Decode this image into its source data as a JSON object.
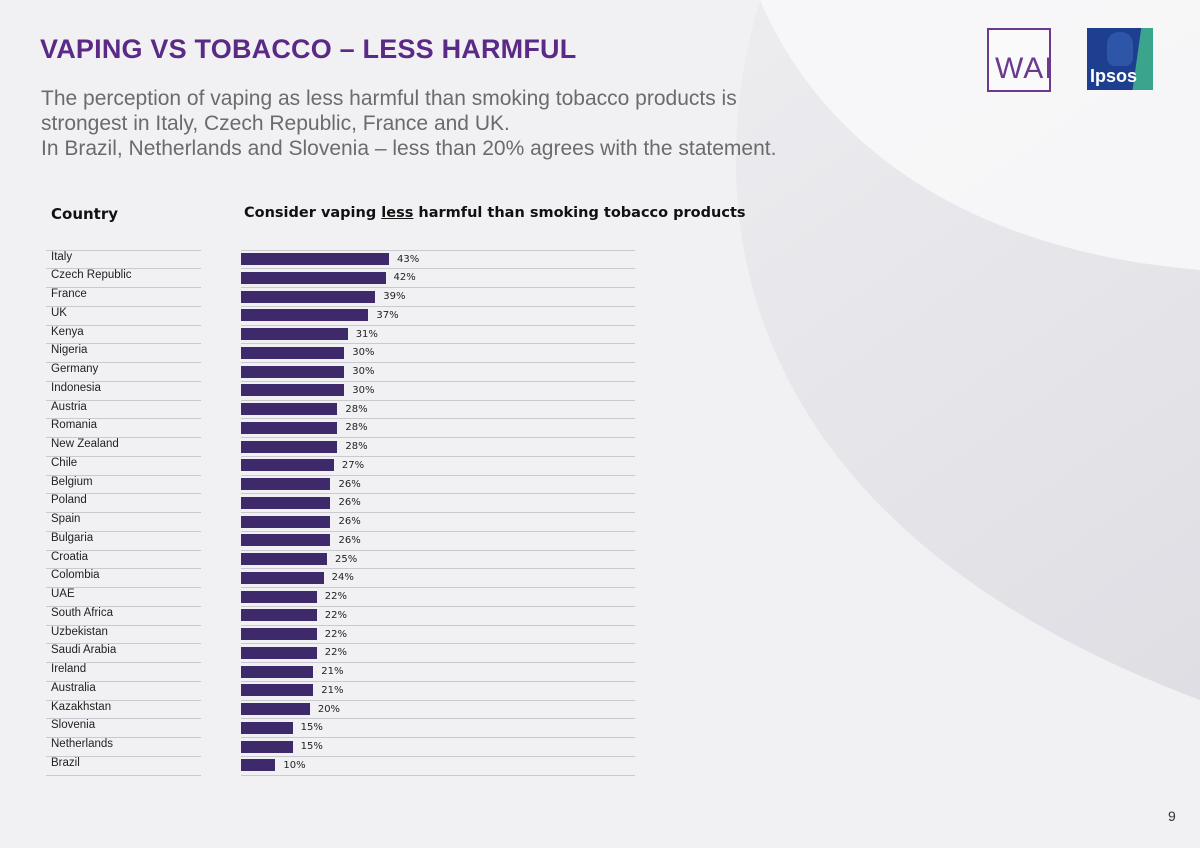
{
  "title": "VAPING VS TOBACCO – LESS HARMFUL",
  "subtitle_lines": [
    "The perception of vaping as less harmful than smoking tobacco products is",
    "strongest in Italy, Czech Republic, France and UK.",
    "In Brazil, Netherlands and Slovenia – less than 20% agrees with the statement."
  ],
  "logos": {
    "wai": "WAI",
    "ipsos": "Ipsos"
  },
  "headers": {
    "country": "Country",
    "measure_before": "Consider vaping ",
    "measure_underlined": "less",
    "measure_after": " harmful than smoking tobacco products"
  },
  "page_number": "9",
  "colors": {
    "title": "#5b2a86",
    "bar": "#3e2a6a",
    "subtitle": "#6b6b6b"
  },
  "chart_data": {
    "type": "bar",
    "orientation": "horizontal",
    "value_unit": "%",
    "categories": [
      "Italy",
      "Czech Republic",
      "France",
      "UK",
      "Kenya",
      "Nigeria",
      "Germany",
      "Indonesia",
      "Austria",
      "Romania",
      "New Zealand",
      "Chile",
      "Belgium",
      "Poland",
      "Spain",
      "Bulgaria",
      "Croatia",
      "Colombia",
      "UAE",
      "South Africa",
      "Uzbekistan",
      "Saudi Arabia",
      "Ireland",
      "Australia",
      "Kazakhstan",
      "Slovenia",
      "Netherlands",
      "Brazil"
    ],
    "values": [
      43,
      42,
      39,
      37,
      31,
      30,
      30,
      30,
      28,
      28,
      28,
      27,
      26,
      26,
      26,
      26,
      25,
      24,
      22,
      22,
      22,
      22,
      21,
      21,
      20,
      15,
      15,
      10
    ],
    "labels": [
      "43%",
      "42%",
      "39%",
      "37%",
      "31%",
      "30%",
      "30%",
      "30%",
      "28%",
      "28%",
      "28%",
      "27%",
      "26%",
      "26%",
      "26%",
      "26%",
      "25%",
      "24%",
      "22%",
      "22%",
      "22%",
      "22%",
      "21%",
      "21%",
      "20%",
      "15%",
      "15%",
      "10%"
    ]
  }
}
